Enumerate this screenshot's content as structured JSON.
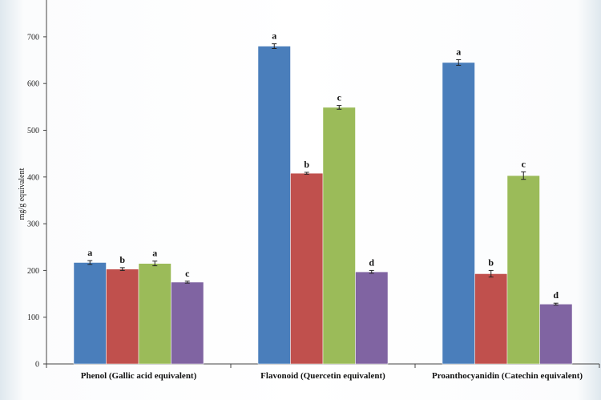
{
  "chart_data": {
    "type": "bar",
    "title": "",
    "xlabel": "",
    "ylabel": "mg/g equivalent",
    "ylim": [
      0,
      700
    ],
    "yticks": [
      0,
      100,
      200,
      300,
      400,
      500,
      600,
      700
    ],
    "categories": [
      "Phenol (Gallic acid equivalent)",
      "Flavonoid (Quercetin equivalent)",
      "Proanthocyanidin (Catechin equivalent)"
    ],
    "series": [
      {
        "color": "#4a7ebb",
        "values": [
          217,
          680,
          645
        ],
        "errors": [
          4,
          5,
          6
        ],
        "letters": [
          "a",
          "a",
          "a"
        ]
      },
      {
        "color": "#c0504d",
        "values": [
          203,
          408,
          193
        ],
        "errors": [
          3,
          2,
          7
        ],
        "letters": [
          "b",
          "b",
          "b"
        ]
      },
      {
        "color": "#9bbb59",
        "values": [
          215,
          549,
          403
        ],
        "errors": [
          5,
          4,
          8
        ],
        "letters": [
          "a",
          "c",
          "c"
        ]
      },
      {
        "color": "#8064a2",
        "values": [
          175,
          197,
          128
        ],
        "errors": [
          2,
          3,
          2
        ],
        "letters": [
          "c",
          "d",
          "d"
        ]
      }
    ],
    "grid": false,
    "legend": "none"
  }
}
